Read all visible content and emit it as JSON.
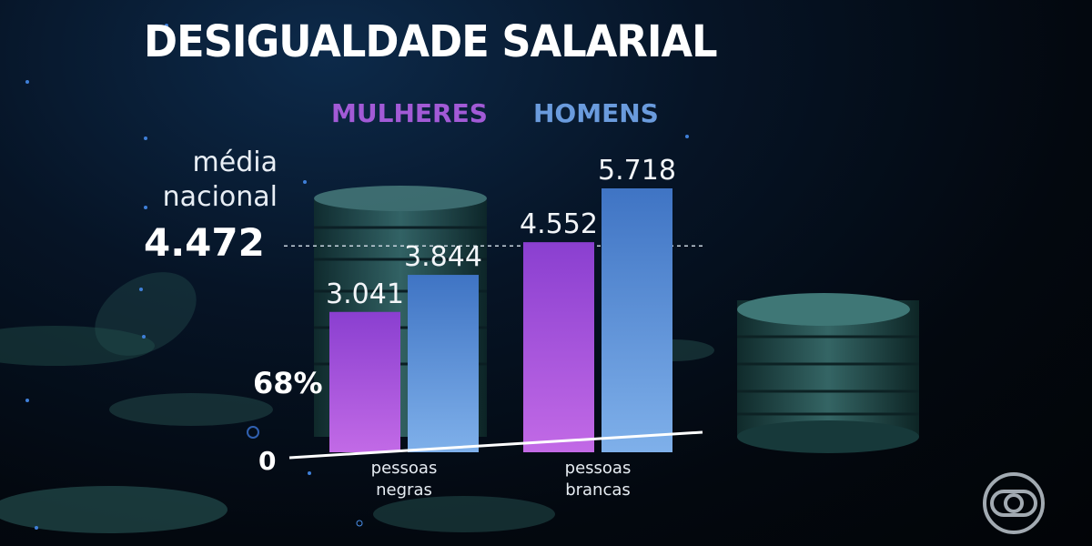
{
  "chart_data": {
    "type": "bar",
    "title": "DESIGUALDADE SALARIAL",
    "categories": [
      "pessoas negras",
      "pessoas brancas"
    ],
    "category_lines": [
      [
        "pessoas",
        "negras"
      ],
      [
        "pessoas",
        "brancas"
      ]
    ],
    "series": [
      {
        "name": "MULHERES",
        "color": "#b35ee0",
        "values": [
          3041,
          4552
        ],
        "labels": [
          "3.041",
          "4.552"
        ]
      },
      {
        "name": "HOMENS",
        "color": "#5b8fd6",
        "values": [
          3844,
          5718
        ],
        "labels": [
          "3.844",
          "5.718"
        ]
      }
    ],
    "reference_line": {
      "value": 4472,
      "label_lines": [
        "média",
        "nacional"
      ],
      "value_label": "4.472"
    },
    "annotation": "68%",
    "zero_label": "0",
    "ylim": [
      0,
      5718
    ],
    "legend_position": "top",
    "grid": false
  },
  "colors": {
    "women": "#a25ad6",
    "men": "#6a9bdd",
    "text": "#ffffff"
  },
  "icons": {
    "logo": "globo-logo-icon"
  }
}
